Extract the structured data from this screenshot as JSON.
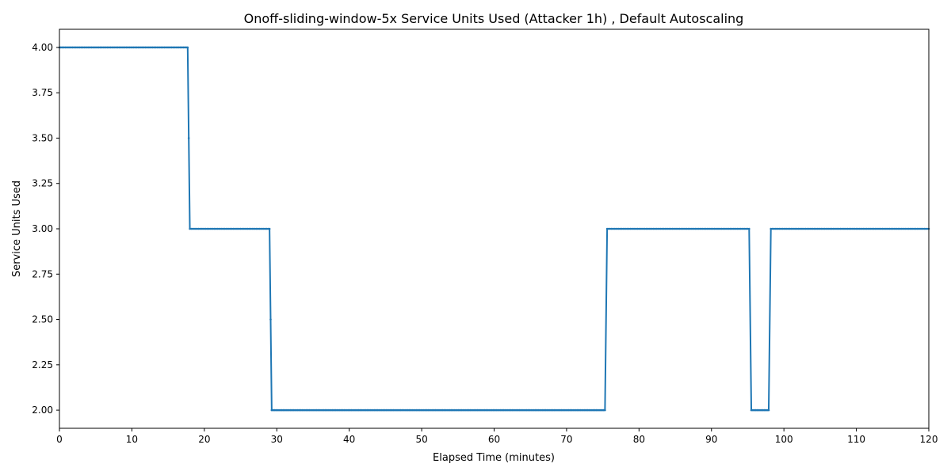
{
  "chart_data": {
    "type": "line",
    "title": "Onoff-sliding-window-5x Service Units Used (Attacker 1h) , Default Autoscaling",
    "xlabel": "Elapsed Time (minutes)",
    "ylabel": "Service Units Used",
    "xlim": [
      0,
      120
    ],
    "ylim": [
      1.9,
      4.1
    ],
    "x_ticks": [
      0,
      10,
      20,
      30,
      40,
      50,
      60,
      70,
      80,
      90,
      100,
      110,
      120
    ],
    "y_ticks": [
      "2.00",
      "2.25",
      "2.50",
      "2.75",
      "3.00",
      "3.25",
      "3.50",
      "3.75",
      "4.00"
    ],
    "grid": false,
    "legend": "none",
    "series": [
      {
        "color": "#1f77b4",
        "marker_step": 0.2,
        "x": [
          0,
          17.7,
          18.0,
          29.0,
          29.3,
          75.3,
          75.6,
          95.2,
          95.5,
          97.9,
          98.2,
          120
        ],
        "y": [
          4,
          4,
          3,
          3,
          2,
          2,
          3,
          3,
          2,
          2,
          3,
          3
        ]
      }
    ]
  }
}
